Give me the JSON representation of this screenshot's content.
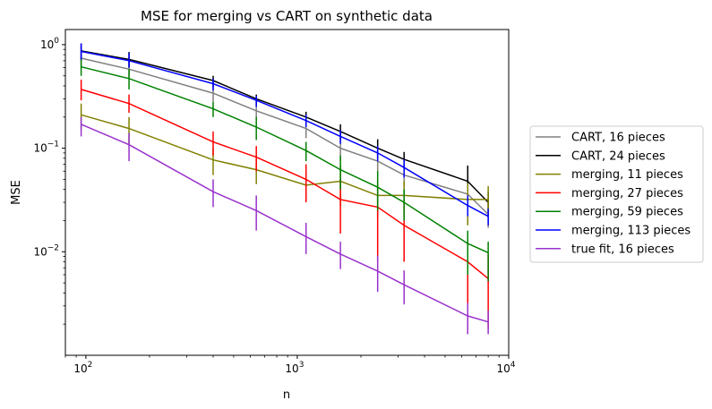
{
  "chart_data": {
    "type": "line",
    "title": "MSE for merging vs CART on synthetic data",
    "xlabel": "n",
    "ylabel": "MSE",
    "xscale": "log",
    "yscale": "log",
    "xlim": [
      80,
      10000
    ],
    "ylim": [
      0.001,
      1.4
    ],
    "x_ticks": [
      {
        "value": 100,
        "base": "10",
        "exp": "2"
      },
      {
        "value": 1000,
        "base": "10",
        "exp": "3"
      },
      {
        "value": 10000,
        "base": "10",
        "exp": "4"
      }
    ],
    "y_ticks": [
      {
        "value": 0.01,
        "base": "10",
        "exp": "−2"
      },
      {
        "value": 0.1,
        "base": "10",
        "exp": "−1"
      },
      {
        "value": 1,
        "base": "10",
        "exp": "0"
      }
    ],
    "legend_position": "right",
    "x": [
      95,
      160,
      400,
      640,
      1100,
      1600,
      2400,
      3200,
      6400,
      8000
    ],
    "series": [
      {
        "name": "CART, 16 pieces",
        "color": "#808080",
        "values": [
          0.74,
          0.58,
          0.34,
          0.23,
          0.155,
          0.1,
          0.075,
          0.055,
          0.036,
          0.023
        ],
        "err_low": [
          0.6,
          0.48,
          0.28,
          0.19,
          0.125,
          0.075,
          0.058,
          0.042,
          0.022,
          0.017
        ],
        "err_high": [
          0.9,
          0.7,
          0.4,
          0.28,
          0.185,
          0.125,
          0.095,
          0.07,
          0.05,
          0.03
        ]
      },
      {
        "name": "CART, 24 pieces",
        "color": "#000000",
        "values": [
          0.87,
          0.72,
          0.45,
          0.3,
          0.2,
          0.145,
          0.1,
          0.078,
          0.048,
          0.03
        ],
        "err_low": [
          0.7,
          0.6,
          0.39,
          0.26,
          0.17,
          0.12,
          0.08,
          0.063,
          0.032,
          0.024
        ],
        "err_high": [
          1.02,
          0.85,
          0.5,
          0.33,
          0.225,
          0.17,
          0.122,
          0.092,
          0.068,
          0.038
        ]
      },
      {
        "name": "merging, 11 pieces",
        "color": "#808000",
        "values": [
          0.21,
          0.155,
          0.077,
          0.062,
          0.044,
          0.048,
          0.035,
          0.035,
          0.032,
          0.032
        ],
        "err_low": [
          0.15,
          0.11,
          0.055,
          0.045,
          0.032,
          0.028,
          0.021,
          0.022,
          0.018,
          0.022
        ],
        "err_high": [
          0.27,
          0.2,
          0.1,
          0.08,
          0.058,
          0.068,
          0.049,
          0.048,
          0.046,
          0.043
        ]
      },
      {
        "name": "merging, 27 pieces",
        "color": "#ff0000",
        "values": [
          0.37,
          0.27,
          0.115,
          0.082,
          0.05,
          0.032,
          0.027,
          0.018,
          0.008,
          0.0055
        ],
        "err_low": [
          0.29,
          0.22,
          0.085,
          0.06,
          0.03,
          0.015,
          0.008,
          0.008,
          0.002,
          0.0018
        ],
        "err_high": [
          0.46,
          0.33,
          0.145,
          0.105,
          0.07,
          0.05,
          0.046,
          0.03,
          0.015,
          0.0095
        ]
      },
      {
        "name": "merging, 59 pieces",
        "color": "#008000",
        "values": [
          0.61,
          0.47,
          0.24,
          0.16,
          0.095,
          0.062,
          0.042,
          0.03,
          0.012,
          0.0098
        ],
        "err_low": [
          0.5,
          0.37,
          0.2,
          0.12,
          0.075,
          0.04,
          0.025,
          0.02,
          0.006,
          0.0052
        ],
        "err_high": [
          0.74,
          0.58,
          0.28,
          0.2,
          0.115,
          0.085,
          0.06,
          0.04,
          0.016,
          0.0125
        ]
      },
      {
        "name": "merging, 113 pieces",
        "color": "#0000ff",
        "values": [
          0.86,
          0.7,
          0.42,
          0.29,
          0.185,
          0.13,
          0.09,
          0.065,
          0.028,
          0.022
        ],
        "err_low": [
          0.72,
          0.6,
          0.36,
          0.25,
          0.16,
          0.11,
          0.075,
          0.052,
          0.022,
          0.018
        ],
        "err_high": [
          1.03,
          0.83,
          0.47,
          0.32,
          0.21,
          0.15,
          0.105,
          0.078,
          0.035,
          0.026
        ]
      },
      {
        "name": "true fit, 16 pieces",
        "color": "#9932cc",
        "values": [
          0.17,
          0.108,
          0.038,
          0.025,
          0.014,
          0.0095,
          0.0065,
          0.0048,
          0.0024,
          0.0021
        ],
        "err_low": [
          0.13,
          0.075,
          0.027,
          0.016,
          0.0095,
          0.0068,
          0.0041,
          0.0031,
          0.0016,
          0.0016
        ],
        "err_high": [
          0.2,
          0.14,
          0.05,
          0.035,
          0.019,
          0.0125,
          0.0092,
          0.0066,
          0.0032,
          0.0027
        ]
      }
    ]
  }
}
